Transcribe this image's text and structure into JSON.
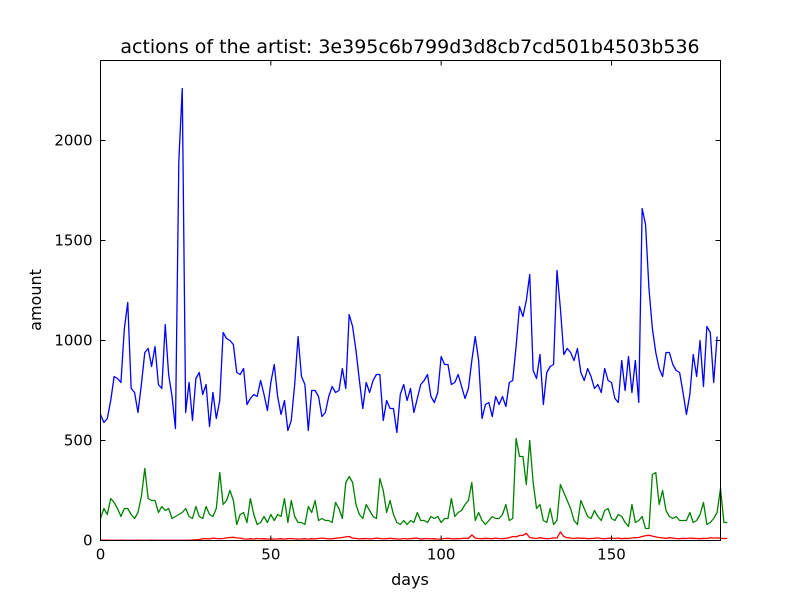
{
  "chart_data": {
    "type": "line",
    "title": "actions of the artist: 3e395c6b799d3d8cb7cd501b4503b536",
    "xlabel": "days",
    "ylabel": "amount",
    "xlim": [
      0,
      182
    ],
    "ylim": [
      0,
      2400
    ],
    "xticks": [
      0,
      50,
      100,
      150
    ],
    "yticks": [
      0,
      500,
      1000,
      1500,
      2000
    ],
    "grid": false,
    "series": [
      {
        "color": "#0000ff",
        "values": [
          630,
          590,
          610,
          700,
          820,
          810,
          790,
          1060,
          1190,
          760,
          740,
          640,
          780,
          940,
          960,
          870,
          970,
          780,
          760,
          1080,
          830,
          720,
          560,
          1900,
          2260,
          640,
          790,
          600,
          810,
          840,
          730,
          780,
          570,
          740,
          610,
          700,
          1040,
          1010,
          1000,
          980,
          840,
          830,
          860,
          680,
          710,
          730,
          720,
          800,
          730,
          650,
          790,
          880,
          720,
          630,
          700,
          550,
          600,
          780,
          1020,
          820,
          780,
          550,
          750,
          750,
          720,
          620,
          640,
          720,
          770,
          740,
          750,
          860,
          760,
          1130,
          1070,
          950,
          800,
          660,
          790,
          740,
          800,
          830,
          830,
          600,
          700,
          660,
          660,
          540,
          730,
          780,
          700,
          760,
          640,
          710,
          780,
          800,
          830,
          720,
          690,
          740,
          920,
          880,
          880,
          780,
          790,
          830,
          770,
          710,
          760,
          900,
          1020,
          900,
          610,
          680,
          690,
          620,
          720,
          680,
          720,
          670,
          790,
          800,
          970,
          1170,
          1120,
          1200,
          1330,
          850,
          810,
          930,
          680,
          840,
          870,
          880,
          1350,
          1160,
          930,
          960,
          940,
          900,
          960,
          840,
          800,
          860,
          820,
          760,
          780,
          740,
          860,
          800,
          790,
          710,
          690,
          900,
          750,
          920,
          740,
          900,
          690,
          1660,
          1580,
          1260,
          1060,
          940,
          860,
          820,
          940,
          940,
          880,
          850,
          840,
          740,
          630,
          730,
          930,
          820,
          1000,
          770,
          1070,
          1040,
          790,
          1020
        ]
      },
      {
        "color": "#008000",
        "values": [
          110,
          160,
          130,
          210,
          190,
          160,
          120,
          160,
          160,
          130,
          110,
          140,
          220,
          360,
          210,
          200,
          200,
          140,
          170,
          150,
          160,
          110,
          120,
          130,
          140,
          160,
          120,
          110,
          170,
          120,
          110,
          170,
          130,
          120,
          160,
          340,
          180,
          200,
          250,
          200,
          80,
          130,
          140,
          90,
          210,
          130,
          80,
          90,
          120,
          90,
          130,
          100,
          130,
          120,
          210,
          90,
          200,
          120,
          90,
          90,
          80,
          170,
          140,
          200,
          100,
          110,
          100,
          100,
          90,
          190,
          160,
          110,
          290,
          320,
          290,
          180,
          130,
          110,
          180,
          150,
          120,
          110,
          310,
          250,
          140,
          200,
          130,
          90,
          80,
          100,
          80,
          100,
          90,
          140,
          100,
          100,
          90,
          120,
          110,
          120,
          90,
          110,
          110,
          210,
          120,
          140,
          150,
          180,
          200,
          290,
          100,
          140,
          100,
          80,
          100,
          120,
          110,
          110,
          130,
          180,
          100,
          110,
          510,
          420,
          420,
          280,
          500,
          290,
          160,
          180,
          100,
          90,
          160,
          80,
          100,
          280,
          240,
          200,
          160,
          100,
          80,
          200,
          160,
          120,
          110,
          150,
          120,
          100,
          150,
          160,
          110,
          100,
          130,
          120,
          90,
          70,
          180,
          90,
          100,
          120,
          60,
          60,
          330,
          340,
          180,
          250,
          150,
          120,
          110,
          120,
          100,
          100,
          100,
          140,
          90,
          100,
          130,
          190,
          80,
          90,
          110,
          140,
          260,
          90,
          90
        ]
      },
      {
        "color": "#ff0000",
        "values": [
          2,
          2,
          2,
          1,
          1,
          1,
          2,
          1,
          1,
          1,
          1,
          2,
          1,
          1,
          1,
          2,
          1,
          1,
          1,
          1,
          1,
          1,
          1,
          1,
          1,
          1,
          2,
          2,
          4,
          5,
          9,
          9,
          8,
          12,
          10,
          9,
          10,
          13,
          15,
          16,
          13,
          12,
          8,
          7,
          9,
          7,
          10,
          8,
          9,
          7,
          8,
          7,
          8,
          9,
          7,
          9,
          10,
          8,
          7,
          8,
          9,
          7,
          9,
          8,
          10,
          12,
          10,
          8,
          9,
          11,
          13,
          15,
          18,
          20,
          12,
          10,
          8,
          9,
          10,
          8,
          9,
          12,
          10,
          8,
          9,
          11,
          9,
          8,
          7,
          10,
          8,
          9,
          11,
          12,
          7,
          9,
          10,
          8,
          9,
          7,
          8,
          10,
          11,
          9,
          8,
          9,
          10,
          12,
          10,
          28,
          12,
          10,
          9,
          11,
          10,
          9,
          12,
          10,
          9,
          11,
          14,
          20,
          18,
          25,
          26,
          36,
          15,
          12,
          10,
          14,
          11,
          9,
          10,
          13,
          12,
          43,
          20,
          14,
          12,
          10,
          13,
          11,
          12,
          9,
          10,
          11,
          13,
          10,
          9,
          11,
          12,
          10,
          12,
          9,
          11,
          10,
          13,
          14,
          15,
          20,
          24,
          26,
          22,
          18,
          15,
          13,
          11,
          14,
          12,
          10,
          9,
          11,
          10,
          12,
          11,
          10,
          9,
          11,
          10,
          14,
          12,
          13,
          11,
          10,
          10
        ]
      }
    ]
  }
}
